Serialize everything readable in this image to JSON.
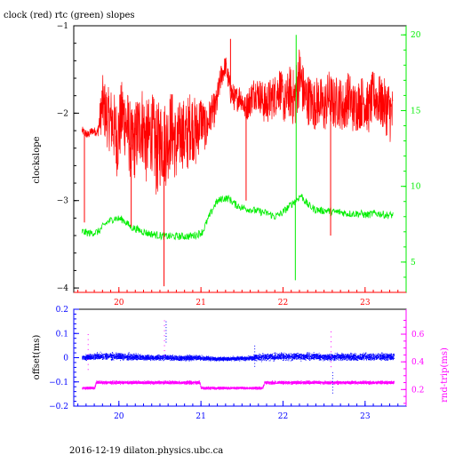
{
  "title": "clock (red) rtc (green) slopes",
  "footer": "2016-12-19  dilaton.physics.ubc.ca",
  "colors": {
    "clock": "#ff0000",
    "rtc": "#00ee00",
    "offset": "#0000ff",
    "rndtrip": "#ff00ff",
    "axis": "#000000"
  },
  "chart_data": [
    {
      "type": "line",
      "title": "clock (red) rtc (green) slopes",
      "xlabel": "",
      "ylabel": "clockslope",
      "y2label": "",
      "xlim": [
        19.45,
        23.5
      ],
      "ylim": [
        -4.05,
        -1.0
      ],
      "y2lim": [
        3.0,
        20.6
      ],
      "xticks": [
        20,
        21,
        22,
        23
      ],
      "yticks": [
        -4,
        -3,
        -2,
        -1
      ],
      "y2ticks": [
        5,
        10,
        15,
        20
      ],
      "series": [
        {
          "name": "clock",
          "axis": "left",
          "color": "#ff0000",
          "x": [
            19.55,
            19.62,
            19.68,
            19.74,
            19.8,
            19.86,
            19.92,
            19.98,
            20.04,
            20.1,
            20.16,
            20.22,
            20.28,
            20.34,
            20.4,
            20.46,
            20.52,
            20.58,
            20.64,
            20.7,
            20.76,
            20.82,
            20.88,
            20.94,
            21.0,
            21.06,
            21.12,
            21.18,
            21.24,
            21.3,
            21.36,
            21.42,
            21.48,
            21.54,
            21.6,
            21.66,
            21.72,
            21.78,
            21.84,
            21.9,
            21.96,
            22.02,
            22.08,
            22.14,
            22.2,
            22.26,
            22.32,
            22.38,
            22.44,
            22.5,
            22.56,
            22.62,
            22.68,
            22.74,
            22.8,
            22.86,
            22.92,
            22.98,
            23.04,
            23.1,
            23.16,
            23.22,
            23.28,
            23.34
          ],
          "y": [
            -2.2,
            -2.25,
            -2.2,
            -2.22,
            -1.9,
            -2.05,
            -2.1,
            -2.3,
            -2.0,
            -2.15,
            -2.4,
            -2.25,
            -2.1,
            -2.35,
            -2.2,
            -2.45,
            -2.3,
            -2.35,
            -2.15,
            -2.4,
            -2.2,
            -2.3,
            -2.1,
            -2.25,
            -2.05,
            -2.2,
            -2.0,
            -1.95,
            -1.6,
            -1.45,
            -1.75,
            -1.85,
            -1.8,
            -1.95,
            -1.85,
            -1.75,
            -1.8,
            -1.9,
            -1.85,
            -1.8,
            -1.7,
            -1.9,
            -1.75,
            -1.85,
            -1.55,
            -1.8,
            -1.85,
            -1.9,
            -1.85,
            -1.95,
            -1.8,
            -1.9,
            -1.85,
            -1.95,
            -1.8,
            -1.95,
            -1.9,
            -1.85,
            -1.95,
            -1.8,
            -1.85,
            -1.9,
            -1.95,
            -2.05
          ],
          "spread": [
            0.05,
            0.05,
            0.05,
            0.05,
            0.35,
            0.35,
            0.4,
            0.45,
            0.4,
            0.45,
            0.45,
            0.45,
            0.45,
            0.5,
            0.45,
            0.55,
            0.5,
            0.5,
            0.45,
            0.45,
            0.4,
            0.45,
            0.4,
            0.4,
            0.3,
            0.25,
            0.2,
            0.2,
            0.15,
            0.12,
            0.15,
            0.15,
            0.15,
            0.15,
            0.2,
            0.2,
            0.2,
            0.25,
            0.25,
            0.25,
            0.25,
            0.25,
            0.3,
            0.35,
            0.35,
            0.3,
            0.3,
            0.3,
            0.3,
            0.3,
            0.3,
            0.3,
            0.3,
            0.3,
            0.3,
            0.3,
            0.3,
            0.3,
            0.3,
            0.3,
            0.3,
            0.3,
            0.35,
            0.35
          ]
        },
        {
          "name": "rtc",
          "axis": "right",
          "color": "#00ee00",
          "x": [
            19.55,
            19.65,
            19.75,
            19.85,
            19.95,
            20.05,
            20.15,
            20.25,
            20.35,
            20.45,
            20.55,
            20.65,
            20.75,
            20.85,
            20.95,
            21.02,
            21.1,
            21.18,
            21.26,
            21.34,
            21.42,
            21.5,
            21.58,
            21.66,
            21.74,
            21.82,
            21.9,
            21.98,
            22.06,
            22.14,
            22.22,
            22.3,
            22.38,
            22.46,
            22.54,
            22.62,
            22.7,
            22.78,
            22.86,
            22.94,
            23.02,
            23.1,
            23.18,
            23.26,
            23.34
          ],
          "y": [
            7.0,
            6.9,
            7.0,
            7.6,
            7.9,
            7.8,
            7.3,
            7.1,
            6.9,
            6.8,
            6.7,
            6.7,
            6.7,
            6.7,
            6.8,
            7.0,
            8.0,
            8.9,
            9.2,
            9.2,
            8.8,
            8.6,
            8.5,
            8.4,
            8.3,
            8.2,
            8.0,
            8.2,
            8.6,
            9.0,
            9.4,
            8.8,
            8.5,
            8.4,
            8.4,
            8.3,
            8.3,
            8.2,
            8.2,
            8.2,
            8.1,
            8.2,
            8.2,
            8.1,
            8.1
          ]
        }
      ],
      "spikes": [
        {
          "series": "clock",
          "x": 19.58,
          "y": -3.25
        },
        {
          "series": "clock",
          "x": 20.55,
          "y": -3.98
        },
        {
          "series": "clock",
          "x": 20.15,
          "y": -3.3
        },
        {
          "series": "clock",
          "x": 21.55,
          "y": -3.0
        },
        {
          "series": "clock",
          "x": 22.58,
          "y": -3.4
        },
        {
          "series": "clock",
          "x": 21.36,
          "y": -1.15
        },
        {
          "series": "rtc",
          "x": 22.15,
          "y": 3.8
        },
        {
          "series": "rtc",
          "x": 22.16,
          "y": 20.0
        }
      ]
    },
    {
      "type": "scatter",
      "xlabel": "",
      "ylabel": "offset(ms)",
      "y2label": "rnd-trip(ms)",
      "xlim": [
        19.45,
        23.5
      ],
      "ylim": [
        -0.2,
        0.2
      ],
      "y2lim": [
        0.08,
        0.78
      ],
      "xticks": [
        20,
        21,
        22,
        23
      ],
      "yticks": [
        -0.2,
        -0.1,
        0,
        0.1,
        0.2
      ],
      "ytick_labels": [
        "-0.2",
        "-0.1",
        "0",
        "0.1",
        "0.2"
      ],
      "y2ticks": [
        0.2,
        0.4,
        0.6
      ],
      "series": [
        {
          "name": "offset",
          "axis": "left",
          "color": "#0000ff",
          "x": [
            19.55,
            19.75,
            19.95,
            20.15,
            20.35,
            20.55,
            20.75,
            20.95,
            21.15,
            21.35,
            21.55,
            21.75,
            21.95,
            22.15,
            22.35,
            22.55,
            22.75,
            22.95,
            23.15,
            23.35
          ],
          "y": [
            0.0,
            0.005,
            0.005,
            0.002,
            0.0,
            0.0,
            -0.002,
            0.0,
            -0.005,
            -0.005,
            -0.003,
            0.002,
            0.005,
            0.005,
            0.004,
            0.003,
            0.003,
            0.003,
            0.004,
            0.003
          ],
          "spread": [
            0.012,
            0.02,
            0.02,
            0.02,
            0.015,
            0.015,
            0.015,
            0.013,
            0.01,
            0.01,
            0.012,
            0.02,
            0.02,
            0.02,
            0.02,
            0.02,
            0.02,
            0.02,
            0.02,
            0.02
          ]
        },
        {
          "name": "rnd-trip",
          "axis": "right",
          "color": "#ff00ff",
          "x": [
            19.55,
            19.7,
            19.72,
            19.9,
            20.1,
            20.3,
            20.5,
            20.7,
            20.9,
            20.98,
            21.0,
            21.2,
            21.4,
            21.6,
            21.75,
            21.77,
            21.95,
            22.15,
            22.35,
            22.55,
            22.75,
            22.95,
            23.15,
            23.35
          ],
          "y": [
            0.21,
            0.21,
            0.25,
            0.25,
            0.25,
            0.25,
            0.25,
            0.25,
            0.25,
            0.25,
            0.21,
            0.21,
            0.21,
            0.21,
            0.21,
            0.25,
            0.25,
            0.25,
            0.25,
            0.25,
            0.25,
            0.25,
            0.25,
            0.25
          ],
          "spread": [
            0.012,
            0.012,
            0.015,
            0.015,
            0.015,
            0.015,
            0.015,
            0.015,
            0.015,
            0.015,
            0.012,
            0.012,
            0.012,
            0.012,
            0.012,
            0.015,
            0.015,
            0.015,
            0.015,
            0.015,
            0.015,
            0.015,
            0.015,
            0.015
          ]
        }
      ],
      "outliers": [
        {
          "series": "rnd-trip",
          "x": 20.55,
          "y": 0.7
        },
        {
          "series": "rnd-trip",
          "x": 19.62,
          "y": 0.6
        },
        {
          "series": "rnd-trip",
          "x": 22.58,
          "y": 0.62
        },
        {
          "series": "offset",
          "x": 20.57,
          "y": 0.15
        },
        {
          "series": "offset",
          "x": 21.65,
          "y": 0.05
        },
        {
          "series": "offset",
          "x": 22.6,
          "y": -0.06
        }
      ]
    }
  ]
}
